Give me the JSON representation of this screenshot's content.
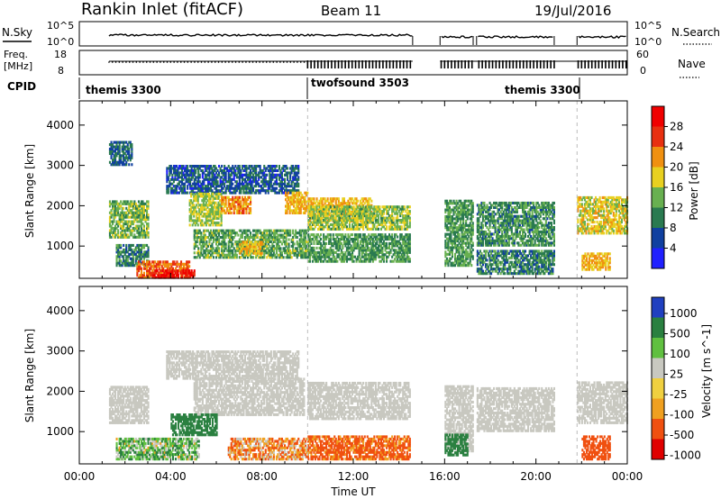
{
  "header": {
    "title": "Rankin Inlet (fitACF)",
    "beam": "Beam 11",
    "date": "19/Jul/2016"
  },
  "top_panels": {
    "nsky_label": "N.Sky",
    "nsky_ticks": [
      "10^5",
      "10^0"
    ],
    "nsearch_label": "N.Search",
    "nsearch_ticks": [
      "10^5",
      "10^0"
    ],
    "freq_label": "Freq.",
    "freq_unit": "[MHz]",
    "freq_ticks": [
      "18",
      "8"
    ],
    "nave_label": "Nave",
    "nave_ticks": [
      "60",
      "0"
    ],
    "cpid_label": "CPID",
    "cpid_segments": [
      {
        "name": "themis 3300",
        "start_h": 0,
        "end_h": 10
      },
      {
        "name": "twofsound 3503",
        "start_h": 10,
        "end_h": 21.8
      },
      {
        "name": "themis 3300",
        "start_h": 21.8,
        "end_h": 24
      }
    ]
  },
  "chart_data": [
    {
      "type": "heatmap",
      "title": "Power",
      "xlabel": "",
      "ylabel": "Slant Range [km]",
      "xlim_hours": [
        0,
        24
      ],
      "ylim": [
        200,
        4600
      ],
      "yticks": [
        1000,
        2000,
        3000,
        4000
      ],
      "colorbar": {
        "label": "Power [dB]",
        "ticks": [
          "28",
          "24",
          "20",
          "16",
          "12",
          "8",
          "4"
        ],
        "colors": [
          "#2020ff",
          "#1040a0",
          "#2a7a50",
          "#68b050",
          "#e8d020",
          "#f09010",
          "#e83010",
          "#f00000"
        ]
      },
      "data_gaps_hours": [
        [
          14.6,
          15.8
        ],
        [
          17.25,
          17.4
        ],
        [
          20.8,
          21.8
        ]
      ],
      "regions": [
        {
          "t": [
            1.3,
            2.3
          ],
          "r": [
            3000,
            3600
          ],
          "v": 8
        },
        {
          "t": [
            1.3,
            3.0
          ],
          "r": [
            1200,
            2100
          ],
          "v": 14
        },
        {
          "t": [
            1.6,
            3.0
          ],
          "r": [
            500,
            1000
          ],
          "v": 10
        },
        {
          "t": [
            2.5,
            4.8
          ],
          "r": [
            200,
            600
          ],
          "v": 24
        },
        {
          "t": [
            3.2,
            5.0
          ],
          "r": [
            200,
            400
          ],
          "v": 29
        },
        {
          "t": [
            3.8,
            9.6
          ],
          "r": [
            2300,
            3000
          ],
          "v": 7
        },
        {
          "t": [
            4.8,
            6.2
          ],
          "r": [
            1500,
            2300
          ],
          "v": 16
        },
        {
          "t": [
            6.2,
            7.5
          ],
          "r": [
            1800,
            2200
          ],
          "v": 22
        },
        {
          "t": [
            5.0,
            10.0
          ],
          "r": [
            700,
            1400
          ],
          "v": 13
        },
        {
          "t": [
            7.0,
            8.0
          ],
          "r": [
            800,
            1100
          ],
          "v": 20
        },
        {
          "t": [
            9.0,
            10.0
          ],
          "r": [
            1800,
            2300
          ],
          "v": 20
        },
        {
          "t": [
            10.0,
            12.8
          ],
          "r": [
            1600,
            2200
          ],
          "v": 20
        },
        {
          "t": [
            10.0,
            14.5
          ],
          "r": [
            1400,
            2000
          ],
          "v": 15
        },
        {
          "t": [
            10.0,
            14.5
          ],
          "r": [
            600,
            1300
          ],
          "v": 12
        },
        {
          "t": [
            16.0,
            17.2
          ],
          "r": [
            500,
            2100
          ],
          "v": 12
        },
        {
          "t": [
            17.4,
            20.8
          ],
          "r": [
            1000,
            2100
          ],
          "v": 11
        },
        {
          "t": [
            17.4,
            20.8
          ],
          "r": [
            300,
            900
          ],
          "v": 10
        },
        {
          "t": [
            21.8,
            24.0
          ],
          "r": [
            1300,
            2200
          ],
          "v": 18
        },
        {
          "t": [
            22.0,
            23.2
          ],
          "r": [
            400,
            800
          ],
          "v": 20
        }
      ]
    },
    {
      "type": "heatmap",
      "title": "Velocity",
      "xlabel": "Time UT",
      "ylabel": "Slant Range [km]",
      "xlim_hours": [
        0,
        24
      ],
      "ylim": [
        200,
        4600
      ],
      "yticks": [
        1000,
        2000,
        3000,
        4000
      ],
      "xticks": [
        "00:00",
        "04:00",
        "08:00",
        "12:00",
        "16:00",
        "20:00",
        "00:00"
      ],
      "colorbar": {
        "label": "Velocity [m s^-1]",
        "ticks": [
          "1000",
          "500",
          "100",
          "25",
          "-25",
          "-100",
          "-500",
          "-1000"
        ],
        "colors": [
          "#e00000",
          "#f05010",
          "#f0a020",
          "#f0d040",
          "#c8c8c0",
          "#60c040",
          "#2a8040",
          "#2040c0"
        ]
      },
      "ground_scatter_color": "#c8c8c0",
      "data_gaps_hours": [
        [
          14.6,
          15.8
        ],
        [
          17.25,
          17.4
        ],
        [
          20.8,
          21.8
        ]
      ],
      "regions": [
        {
          "t": [
            1.3,
            3.0
          ],
          "r": [
            1200,
            2100
          ],
          "v": 0,
          "gs": true
        },
        {
          "t": [
            3.8,
            9.6
          ],
          "r": [
            2300,
            3000
          ],
          "v": 0,
          "gs": true
        },
        {
          "t": [
            5.0,
            9.8
          ],
          "r": [
            1400,
            2300
          ],
          "v": 0,
          "gs": true
        },
        {
          "t": [
            10.0,
            14.5
          ],
          "r": [
            1300,
            2200
          ],
          "v": 0,
          "gs": true
        },
        {
          "t": [
            4.0,
            6.0
          ],
          "r": [
            900,
            1400
          ],
          "v": 300
        },
        {
          "t": [
            1.6,
            5.2
          ],
          "r": [
            300,
            800
          ],
          "v": 60
        },
        {
          "t": [
            6.5,
            10.0
          ],
          "r": [
            300,
            800
          ],
          "v": -80
        },
        {
          "t": [
            10.0,
            14.5
          ],
          "r": [
            300,
            900
          ],
          "v": -150
        },
        {
          "t": [
            16.0,
            17.2
          ],
          "r": [
            500,
            2100
          ],
          "v": 0,
          "gs": true
        },
        {
          "t": [
            17.4,
            20.8
          ],
          "r": [
            1000,
            2100
          ],
          "v": 0,
          "gs": true
        },
        {
          "t": [
            21.8,
            24.0
          ],
          "r": [
            1200,
            2200
          ],
          "v": 0,
          "gs": true
        },
        {
          "t": [
            22.0,
            23.2
          ],
          "r": [
            300,
            900
          ],
          "v": -200
        },
        {
          "t": [
            16.0,
            17.0
          ],
          "r": [
            400,
            900
          ],
          "v": 200
        }
      ]
    }
  ]
}
